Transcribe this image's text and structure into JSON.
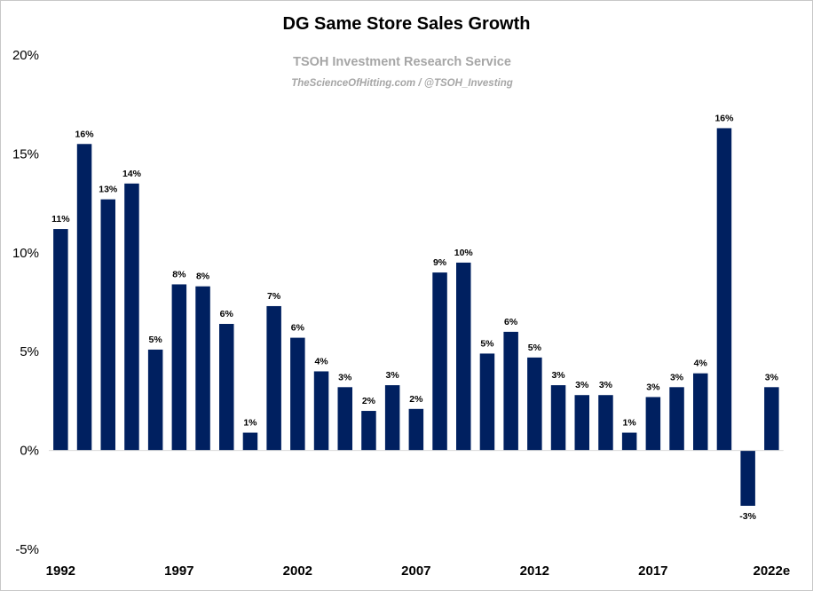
{
  "chart_data": {
    "type": "bar",
    "title": "DG Same Store Sales Growth",
    "watermark": {
      "line1": "TSOH Investment Research Service",
      "line2": "TheScienceOfHitting.com / @TSOH_Investing"
    },
    "xlabel": "",
    "ylabel": "",
    "ylim": [
      -5,
      20
    ],
    "yticks": [
      "20%",
      "15%",
      "10%",
      "5%",
      "0%",
      "-5%"
    ],
    "ytick_values": [
      20,
      15,
      10,
      5,
      0,
      -5
    ],
    "categories": [
      "1992",
      "1993",
      "1994",
      "1995",
      "1996",
      "1997",
      "1998",
      "1999",
      "2000",
      "2001",
      "2002",
      "2003",
      "2004",
      "2005",
      "2006",
      "2007",
      "2008",
      "2009",
      "2010",
      "2011",
      "2012",
      "2013",
      "2014",
      "2015",
      "2016",
      "2017",
      "2018",
      "2019",
      "2020",
      "2021",
      "2022e"
    ],
    "x_tick_labels": [
      "1992",
      "1997",
      "2002",
      "2007",
      "2012",
      "2017",
      "2022e"
    ],
    "x_tick_indices": [
      0,
      5,
      10,
      15,
      20,
      25,
      30
    ],
    "values": [
      11.2,
      15.5,
      12.7,
      13.5,
      5.1,
      8.4,
      8.3,
      6.4,
      0.9,
      7.3,
      5.7,
      4.0,
      3.2,
      2.0,
      3.3,
      2.1,
      9.0,
      9.5,
      4.9,
      6.0,
      4.7,
      3.3,
      2.8,
      2.8,
      0.9,
      2.7,
      3.2,
      3.9,
      16.3,
      -2.8,
      3.2
    ],
    "data_labels": [
      "11%",
      "16%",
      "13%",
      "14%",
      "5%",
      "8%",
      "8%",
      "6%",
      "1%",
      "7%",
      "6%",
      "4%",
      "3%",
      "2%",
      "3%",
      "2%",
      "9%",
      "10%",
      "5%",
      "6%",
      "5%",
      "3%",
      "3%",
      "3%",
      "1%",
      "3%",
      "3%",
      "4%",
      "16%",
      "-3%",
      "3%"
    ],
    "bar_color": "#002060",
    "grid": false,
    "legend": "none"
  }
}
